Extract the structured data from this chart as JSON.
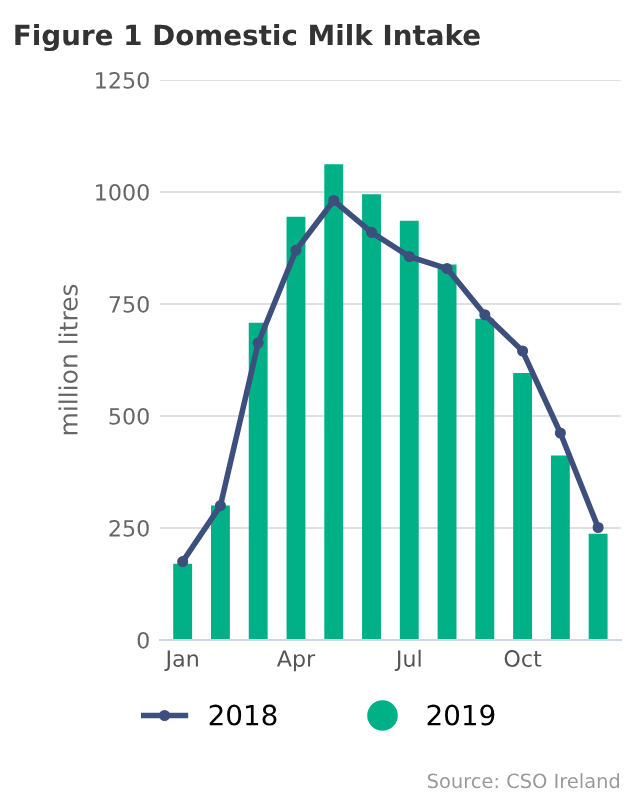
{
  "chart_data": {
    "type": "bar",
    "title": "Figure 1 Domestic Milk Intake",
    "ylabel": "million litres",
    "categories": [
      "Jan",
      null,
      null,
      "Apr",
      null,
      null,
      "Jul",
      null,
      null,
      "Oct",
      null,
      null
    ],
    "series": [
      {
        "name": "2018",
        "type": "line",
        "color": "#3d4f7c",
        "marker": "circle",
        "values": [
          175,
          300,
          663,
          870,
          981,
          910,
          856,
          829,
          726,
          645,
          462,
          251
        ]
      },
      {
        "name": "2019",
        "color": "#00b087",
        "values": [
          170,
          300,
          708,
          945,
          1062,
          995,
          936,
          838,
          717,
          596,
          412,
          237
        ]
      }
    ],
    "ylim": [
      0,
      1250
    ],
    "yticks": [
      0,
      250,
      500,
      750,
      1000,
      1250
    ],
    "grid": "y",
    "legend": "bottom",
    "annotations": [
      "Source: CSO Ireland"
    ]
  }
}
